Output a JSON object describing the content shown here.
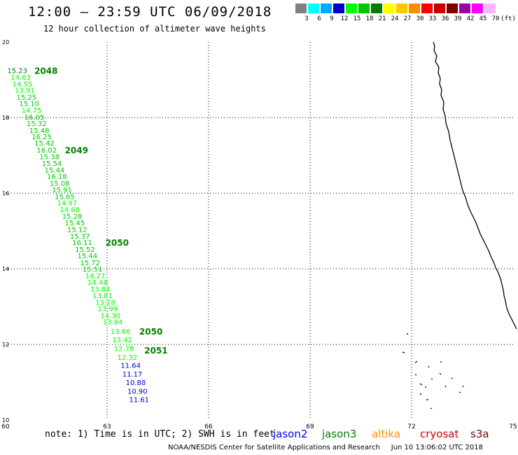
{
  "title": "12:00 – 23:59 UTC 06/09/2018",
  "subtitle": "12 hour collection of altimeter wave heights",
  "color_scale": {
    "unit": "(ft)",
    "swatches": [
      {
        "label": "3",
        "color": "#808080"
      },
      {
        "label": "6",
        "color": "#00ffff"
      },
      {
        "label": "9",
        "color": "#00aaff"
      },
      {
        "label": "12",
        "color": "#0000c8"
      },
      {
        "label": "15",
        "color": "#00ff00"
      },
      {
        "label": "18",
        "color": "#00c800"
      },
      {
        "label": "21",
        "color": "#008000"
      },
      {
        "label": "24",
        "color": "#ffff00"
      },
      {
        "label": "27",
        "color": "#ffc800"
      },
      {
        "label": "30",
        "color": "#ff8c00"
      },
      {
        "label": "33",
        "color": "#ff0000"
      },
      {
        "label": "36",
        "color": "#c80000"
      },
      {
        "label": "39",
        "color": "#800000"
      },
      {
        "label": "42",
        "color": "#a000a0"
      },
      {
        "label": "45",
        "color": "#ff00ff"
      },
      {
        "label": "70",
        "color": "#ffb4ff"
      }
    ]
  },
  "map": {
    "lon_range": [
      60,
      75
    ],
    "lat_range": [
      10,
      20
    ],
    "lon_ticks": [
      {
        "value": 60,
        "label": "60"
      },
      {
        "value": 63,
        "label": "63"
      },
      {
        "value": 66,
        "label": "66"
      },
      {
        "value": 69,
        "label": "69"
      },
      {
        "value": 72,
        "label": "72"
      },
      {
        "value": 75,
        "label": "75"
      }
    ],
    "lat_ticks": [
      {
        "value": 10,
        "label": "10"
      },
      {
        "value": 12,
        "label": "12"
      },
      {
        "value": 14,
        "label": "14"
      },
      {
        "value": 16,
        "label": "16"
      },
      {
        "value": 18,
        "label": "18"
      },
      {
        "value": 20,
        "label": "20"
      }
    ],
    "gridlines": true
  },
  "observations": [
    {
      "lon": 60.05,
      "lat": 19.25,
      "swh": "15.23",
      "color": "#008000"
    },
    {
      "lon": 60.15,
      "lat": 19.07,
      "swh": "14.63",
      "color": "#00ff00"
    },
    {
      "lon": 60.2,
      "lat": 18.9,
      "swh": "14.55",
      "color": "#00ff00"
    },
    {
      "lon": 60.27,
      "lat": 18.73,
      "swh": "13.91",
      "color": "#00ff00"
    },
    {
      "lon": 60.32,
      "lat": 18.55,
      "swh": "15.25",
      "color": "#00c800"
    },
    {
      "lon": 60.4,
      "lat": 18.38,
      "swh": "15.10",
      "color": "#00c800"
    },
    {
      "lon": 60.47,
      "lat": 18.2,
      "swh": "14.75",
      "color": "#00ff00"
    },
    {
      "lon": 60.55,
      "lat": 18.02,
      "swh": "16.05",
      "color": "#00c800"
    },
    {
      "lon": 60.62,
      "lat": 17.85,
      "swh": "15.32",
      "color": "#00c800"
    },
    {
      "lon": 60.7,
      "lat": 17.67,
      "swh": "15.48",
      "color": "#00c800"
    },
    {
      "lon": 60.77,
      "lat": 17.5,
      "swh": "16.25",
      "color": "#00c800"
    },
    {
      "lon": 60.85,
      "lat": 17.33,
      "swh": "15.42",
      "color": "#00c800"
    },
    {
      "lon": 60.92,
      "lat": 17.15,
      "swh": "16.02",
      "color": "#00c800"
    },
    {
      "lon": 61.0,
      "lat": 16.97,
      "swh": "15.38",
      "color": "#00c800"
    },
    {
      "lon": 61.07,
      "lat": 16.8,
      "swh": "15.54",
      "color": "#00c800"
    },
    {
      "lon": 61.15,
      "lat": 16.62,
      "swh": "15.44",
      "color": "#00c800"
    },
    {
      "lon": 61.22,
      "lat": 16.45,
      "swh": "16.18",
      "color": "#00c800"
    },
    {
      "lon": 61.3,
      "lat": 16.27,
      "swh": "15.08",
      "color": "#00c800"
    },
    {
      "lon": 61.37,
      "lat": 16.1,
      "swh": "15.91",
      "color": "#00c800"
    },
    {
      "lon": 61.45,
      "lat": 15.92,
      "swh": "15.65",
      "color": "#00c800"
    },
    {
      "lon": 61.52,
      "lat": 15.75,
      "swh": "14.97",
      "color": "#00ff00"
    },
    {
      "lon": 61.6,
      "lat": 15.57,
      "swh": "14.68",
      "color": "#00ff00"
    },
    {
      "lon": 61.67,
      "lat": 15.4,
      "swh": "15.28",
      "color": "#00c800"
    },
    {
      "lon": 61.75,
      "lat": 15.22,
      "swh": "15.45",
      "color": "#00c800"
    },
    {
      "lon": 61.82,
      "lat": 15.05,
      "swh": "15.12",
      "color": "#00c800"
    },
    {
      "lon": 61.9,
      "lat": 14.87,
      "swh": "15.37",
      "color": "#00c800"
    },
    {
      "lon": 61.97,
      "lat": 14.7,
      "swh": "16.11",
      "color": "#00c800"
    },
    {
      "lon": 62.05,
      "lat": 14.52,
      "swh": "15.52",
      "color": "#00c800"
    },
    {
      "lon": 62.12,
      "lat": 14.35,
      "swh": "15.44",
      "color": "#00c800"
    },
    {
      "lon": 62.2,
      "lat": 14.17,
      "swh": "15.72",
      "color": "#00c800"
    },
    {
      "lon": 62.27,
      "lat": 14.0,
      "swh": "15.51",
      "color": "#00c800"
    },
    {
      "lon": 62.35,
      "lat": 13.82,
      "swh": "14.27",
      "color": "#00ff00"
    },
    {
      "lon": 62.42,
      "lat": 13.65,
      "swh": "14.48",
      "color": "#00ff00"
    },
    {
      "lon": 62.5,
      "lat": 13.47,
      "swh": "13.84",
      "color": "#00ff00"
    },
    {
      "lon": 62.57,
      "lat": 13.3,
      "swh": "13.81",
      "color": "#00ff00"
    },
    {
      "lon": 62.65,
      "lat": 13.12,
      "swh": "13.28",
      "color": "#00ff00"
    },
    {
      "lon": 62.72,
      "lat": 12.95,
      "swh": "13.99",
      "color": "#00ff00"
    },
    {
      "lon": 62.8,
      "lat": 12.77,
      "swh": "14.30",
      "color": "#00ff00"
    },
    {
      "lon": 62.87,
      "lat": 12.6,
      "swh": "13.84",
      "color": "#00ff00"
    },
    {
      "lon": 63.1,
      "lat": 12.35,
      "swh": "13.86",
      "color": "#00ff00"
    },
    {
      "lon": 63.15,
      "lat": 12.13,
      "swh": "13.42",
      "color": "#00ff00"
    },
    {
      "lon": 63.2,
      "lat": 11.9,
      "swh": "12.78",
      "color": "#00ff00"
    },
    {
      "lon": 63.3,
      "lat": 11.67,
      "swh": "12.32",
      "color": "#00ff00"
    },
    {
      "lon": 63.4,
      "lat": 11.45,
      "swh": "11.64",
      "color": "#0000c8"
    },
    {
      "lon": 63.45,
      "lat": 11.22,
      "swh": "11.17",
      "color": "#0000c8"
    },
    {
      "lon": 63.55,
      "lat": 11.0,
      "swh": "10.88",
      "color": "#0000c8"
    },
    {
      "lon": 63.6,
      "lat": 10.77,
      "swh": "10.90",
      "color": "#0000c8"
    },
    {
      "lon": 63.65,
      "lat": 10.55,
      "swh": "11.61",
      "color": "#0000c8"
    }
  ],
  "pass_labels": [
    {
      "text": "2048",
      "lon": 60.85,
      "lat": 19.25
    },
    {
      "text": "2049",
      "lon": 61.75,
      "lat": 17.15
    },
    {
      "text": "2050",
      "lon": 62.95,
      "lat": 14.7
    },
    {
      "text": "2050",
      "lon": 63.95,
      "lat": 12.35
    },
    {
      "text": "2051",
      "lon": 64.1,
      "lat": 11.85
    }
  ],
  "note": "note: 1) Time is in UTC; 2) SWH is in feet",
  "satellites": [
    {
      "name": "jason2",
      "color": "#0000ff"
    },
    {
      "name": "jason3",
      "color": "#008000"
    },
    {
      "name": "altika",
      "color": "#ff8c00"
    },
    {
      "name": "cryosat",
      "color": "#c80000"
    },
    {
      "name": "s3a",
      "color": "#800000"
    }
  ],
  "footer": "NOAA/NESDIS Center for Satellite Applications and Research     Jun 10 13:06:02 UTC 2018"
}
